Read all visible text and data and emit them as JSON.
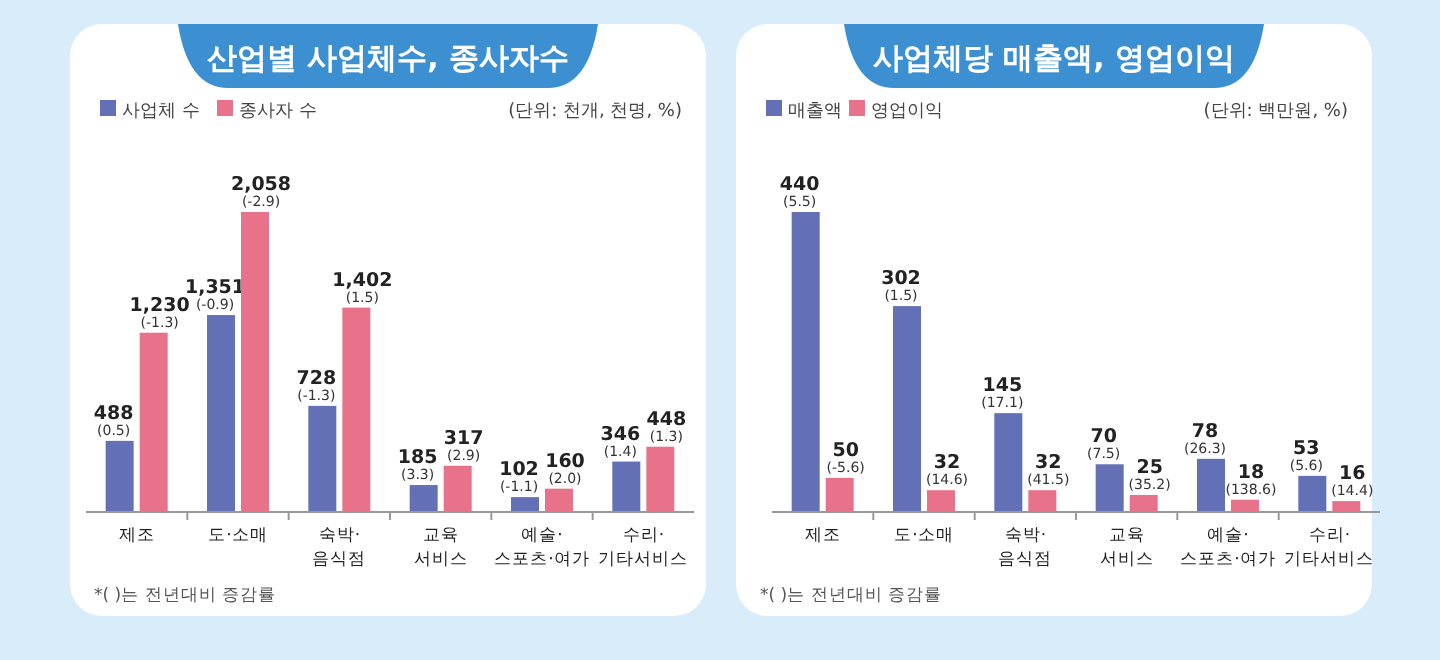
{
  "chart_data": [
    {
      "type": "bar",
      "title": "산업별 사업체수, 종사자수",
      "legend": "top left",
      "annotations": [
        "(단위: 천개, 천명, %)",
        "*( )는 전년대비 증감률"
      ],
      "categories": [
        "제조",
        "도·소매",
        "숙박·\n음식점",
        "교육\n서비스",
        "예술·\n스포츠·여가",
        "수리·\n기타서비스"
      ],
      "series": [
        {
          "name": "사업체 수",
          "color": "#6470b6",
          "values": [
            488,
            1351,
            728,
            185,
            102,
            346
          ],
          "value_labels": [
            "488\n(0.5)",
            "1,351\n(-0.9)",
            "728\n(-1.3)",
            "185\n(3.3)",
            "102\n(-1.1)",
            "346\n(1.4)"
          ]
        },
        {
          "name": "종사자 수",
          "color": "#e8728a",
          "values": [
            1230,
            2058,
            1402,
            317,
            160,
            448
          ],
          "value_labels": [
            "1,230\n(-1.3)",
            "2,058\n(-2.9)",
            "1,402\n(1.5)",
            "317\n(2.9)",
            "160\n(2.0)",
            "448\n(1.3)"
          ]
        }
      ]
    },
    {
      "type": "bar",
      "title": "사업체당 매출액, 영업이익",
      "legend": "top left",
      "annotations": [
        "(단위: 백만원, %)",
        "*( )는 전년대비 증감률"
      ],
      "categories": [
        "제조",
        "도·소매",
        "숙박·\n음식점",
        "교육\n서비스",
        "예술·\n스포츠·여가",
        "수리·\n기타서비스"
      ],
      "series": [
        {
          "name": "매출액",
          "color": "#6470b6",
          "values": [
            440,
            302,
            145,
            70,
            78,
            53
          ],
          "value_labels": [
            "440\n(5.5)",
            "302\n(1.5)",
            "145\n(17.1)",
            "70\n(7.5)",
            "78\n(26.3)",
            "53\n(5.6)"
          ]
        },
        {
          "name": "영업이익",
          "color": "#e8728a",
          "values": [
            50,
            32,
            32,
            25,
            18,
            16
          ],
          "value_labels": [
            "50\n(-5.6)",
            "32\n(14.6)",
            "32\n(41.5)",
            "25\n(35.2)",
            "18\n(138.6)",
            "16\n(14.4)"
          ]
        }
      ]
    }
  ]
}
